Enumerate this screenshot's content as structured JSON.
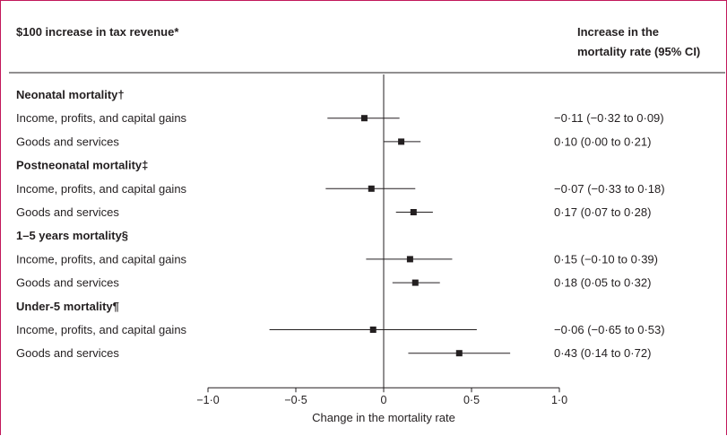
{
  "header": {
    "left": "$100 increase in tax revenue*",
    "right_line1": "Increase in the",
    "right_line2": "mortality rate (95% CI)"
  },
  "chart_data": {
    "type": "forest",
    "xlabel": "Change in the mortality rate",
    "xlim": [
      -1.0,
      1.0
    ],
    "ticks": [
      {
        "value": -1.0,
        "label": "−1·0"
      },
      {
        "value": -0.5,
        "label": "−0·5"
      },
      {
        "value": 0.0,
        "label": "0"
      },
      {
        "value": 0.5,
        "label": "0·5"
      },
      {
        "value": 1.0,
        "label": "1·0"
      }
    ],
    "groups": [
      {
        "title": "Neonatal mortality†",
        "rows": [
          {
            "label": "Income, profits, and capital gains",
            "est": -0.11,
            "lo": -0.32,
            "hi": 0.09,
            "ci_text": "−0·11 (−0·32 to 0·09)"
          },
          {
            "label": "Goods and services",
            "est": 0.1,
            "lo": 0.0,
            "hi": 0.21,
            "ci_text": "0·10 (0·00 to 0·21)"
          }
        ]
      },
      {
        "title": "Postneonatal mortality‡",
        "rows": [
          {
            "label": "Income, profits, and capital gains",
            "est": -0.07,
            "lo": -0.33,
            "hi": 0.18,
            "ci_text": "−0·07 (−0·33 to 0·18)"
          },
          {
            "label": "Goods and services",
            "est": 0.17,
            "lo": 0.07,
            "hi": 0.28,
            "ci_text": "0·17 (0·07 to 0·28)"
          }
        ]
      },
      {
        "title": "1–5 years mortality§",
        "rows": [
          {
            "label": "Income, profits, and capital gains",
            "est": 0.15,
            "lo": -0.1,
            "hi": 0.39,
            "ci_text": "0·15 (−0·10 to 0·39)"
          },
          {
            "label": "Goods and services",
            "est": 0.18,
            "lo": 0.05,
            "hi": 0.32,
            "ci_text": "0·18 (0·05 to 0·32)"
          }
        ]
      },
      {
        "title": "Under-5 mortality¶",
        "rows": [
          {
            "label": "Income, profits, and capital gains",
            "est": -0.06,
            "lo": -0.65,
            "hi": 0.53,
            "ci_text": "−0·06 (−0·65 to 0·53)"
          },
          {
            "label": "Goods and services",
            "est": 0.43,
            "lo": 0.14,
            "hi": 0.72,
            "ci_text": "0·43 (0·14 to 0·72)"
          }
        ]
      }
    ]
  },
  "colors": {
    "frame": "#c2185b",
    "ink": "#231f20"
  }
}
